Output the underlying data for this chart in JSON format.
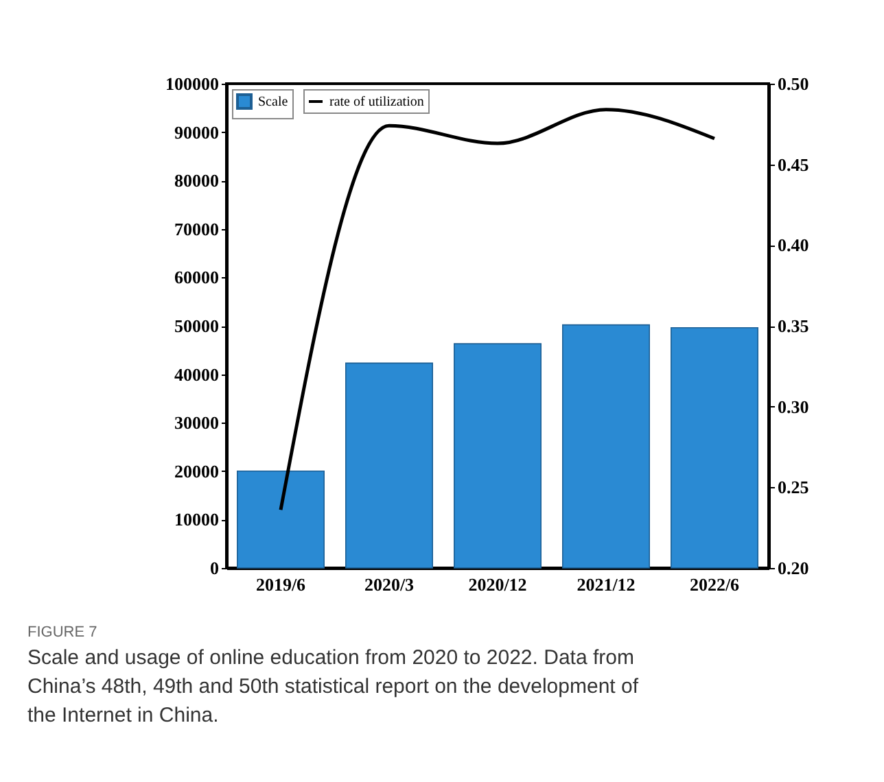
{
  "chart_data": {
    "type": "bar",
    "categories": [
      "2019/6",
      "2020/3",
      "2020/12",
      "2021/12",
      "2022/6"
    ],
    "series": [
      {
        "name": "Scale",
        "color": "#2a8ad3",
        "values": [
          20000,
          42300,
          46300,
          50200,
          49600
        ]
      },
      {
        "name": "rate of utilization",
        "type": "line",
        "axis": "y2",
        "color": "#000000",
        "values": [
          0.236,
          0.474,
          0.463,
          0.484,
          0.466
        ]
      }
    ],
    "ylim": [
      0,
      100000
    ],
    "yticks": [
      0,
      10000,
      20000,
      30000,
      40000,
      50000,
      60000,
      70000,
      80000,
      90000,
      100000
    ],
    "y2lim": [
      0.2,
      0.5
    ],
    "y2ticks": [
      {
        "value": 0.2,
        "label": "0.20"
      },
      0.25,
      {
        "value": 0.3,
        "label": "0.30"
      },
      0.35,
      {
        "value": 0.4,
        "label": "0.40"
      },
      0.45,
      {
        "value": 0.5,
        "label": "0.50"
      }
    ],
    "legend": "top left",
    "grid": false,
    "annotations": [
      "FIGURE 7",
      "Scale and usage of online education from 2020 to 2022. Data from China’s 48th, 49th and 50th statistical report on the development of the Internet in China."
    ]
  }
}
